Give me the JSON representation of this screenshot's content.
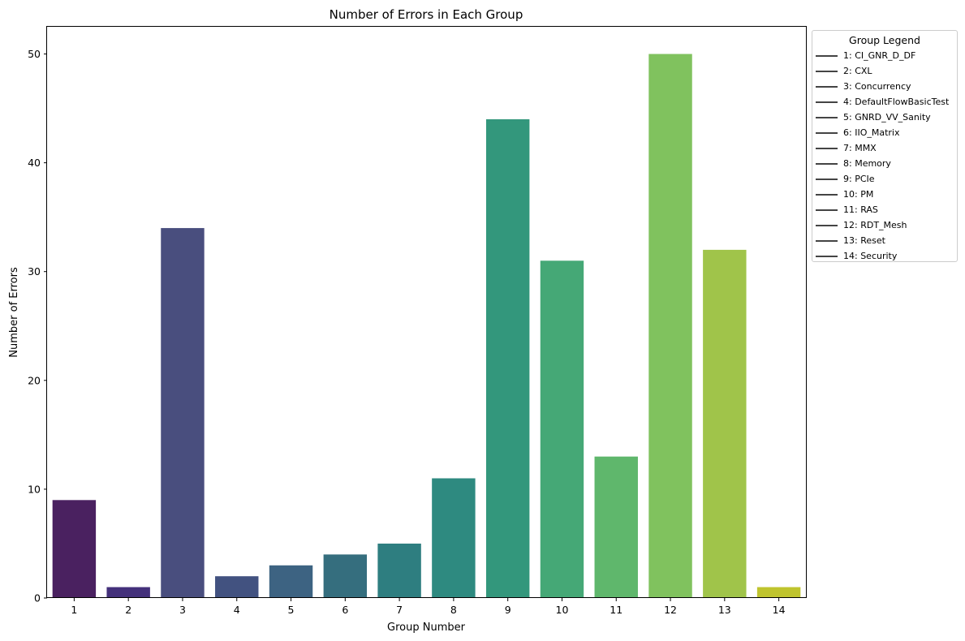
{
  "chart_data": {
    "type": "bar",
    "title": "Number of Errors in Each Group",
    "xlabel": "Group Number",
    "ylabel": "Number of Errors",
    "categories": [
      "1",
      "2",
      "3",
      "4",
      "5",
      "6",
      "7",
      "8",
      "9",
      "10",
      "11",
      "12",
      "13",
      "14"
    ],
    "values": [
      9,
      1,
      34,
      2,
      3,
      4,
      5,
      11,
      44,
      31,
      13,
      50,
      32,
      1
    ],
    "colors": [
      "#4a2160",
      "#44317b",
      "#494e7e",
      "#425280",
      "#3d6382",
      "#356e7e",
      "#2e7e80",
      "#2e8a80",
      "#33977c",
      "#45a876",
      "#5fb76c",
      "#80c25e",
      "#a0c44a",
      "#bfc42e"
    ],
    "ylim": [
      0,
      52.5
    ],
    "yticks": [
      0,
      10,
      20,
      30,
      40,
      50
    ],
    "grid": false,
    "legend": {
      "title": "Group Legend",
      "placement": "outside-right",
      "line_color": "#444444",
      "entries": [
        "1: CI_GNR_D_DF",
        "2: CXL",
        "3: Concurrency",
        "4: DefaultFlowBasicTest",
        "5: GNRD_VV_Sanity",
        "6: IIO_Matrix",
        "7: MMX",
        "8: Memory",
        "9: PCIe",
        "10: PM",
        "11: RAS",
        "12: RDT_Mesh",
        "13: Reset",
        "14: Security"
      ]
    }
  }
}
